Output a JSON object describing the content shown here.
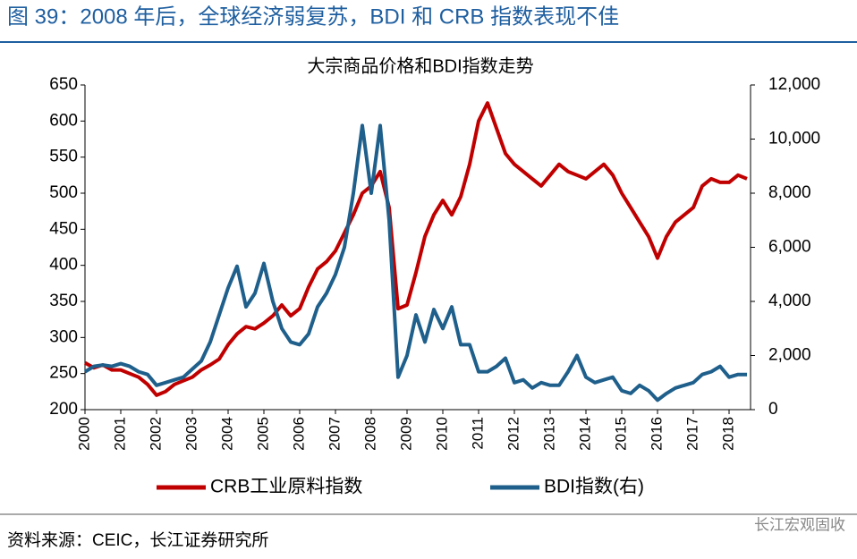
{
  "chart_data": {
    "type": "line",
    "header": "图 39：2008 年后，全球经济弱复苏，BDI 和 CRB 指数表现不佳",
    "title": "大宗商品价格和BDI指数走势",
    "source": "资料来源：CEIC，长江证券研究所",
    "watermark": "长江宏观固收",
    "x": [
      2000,
      2000.25,
      2000.5,
      2000.75,
      2001,
      2001.25,
      2001.5,
      2001.75,
      2002,
      2002.25,
      2002.5,
      2002.75,
      2003,
      2003.25,
      2003.5,
      2003.75,
      2004,
      2004.25,
      2004.5,
      2004.75,
      2005,
      2005.25,
      2005.5,
      2005.75,
      2006,
      2006.25,
      2006.5,
      2006.75,
      2007,
      2007.25,
      2007.5,
      2007.75,
      2008,
      2008.25,
      2008.5,
      2008.75,
      2009,
      2009.25,
      2009.5,
      2009.75,
      2010,
      2010.25,
      2010.5,
      2010.75,
      2011,
      2011.25,
      2011.5,
      2011.75,
      2012,
      2012.25,
      2012.5,
      2012.75,
      2013,
      2013.25,
      2013.5,
      2013.75,
      2014,
      2014.25,
      2014.5,
      2014.75,
      2015,
      2015.25,
      2015.5,
      2015.75,
      2016,
      2016.25,
      2016.5,
      2016.75,
      2017,
      2017.25,
      2017.5,
      2017.75,
      2018,
      2018.25,
      2018.5
    ],
    "series": [
      {
        "name": "CRB工业原料指数",
        "color": "#c00000",
        "axis": "y",
        "values": [
          265,
          258,
          262,
          255,
          255,
          250,
          245,
          235,
          220,
          225,
          235,
          240,
          245,
          255,
          262,
          270,
          290,
          305,
          315,
          312,
          320,
          330,
          345,
          330,
          340,
          370,
          395,
          405,
          420,
          445,
          470,
          500,
          510,
          530,
          480,
          340,
          345,
          390,
          440,
          470,
          490,
          470,
          495,
          540,
          600,
          625,
          590,
          555,
          540,
          530,
          520,
          510,
          525,
          540,
          530,
          525,
          520,
          530,
          540,
          525,
          500,
          480,
          460,
          440,
          410,
          440,
          460,
          470,
          480,
          510,
          520,
          515,
          515,
          525,
          520
        ]
      },
      {
        "name": "BDI指数(右)",
        "color": "#1f5f8b",
        "axis": "y2",
        "values": [
          1400,
          1600,
          1650,
          1600,
          1700,
          1600,
          1400,
          1300,
          900,
          1000,
          1100,
          1200,
          1500,
          1800,
          2500,
          3500,
          4500,
          5300,
          3800,
          4300,
          5400,
          4000,
          3000,
          2500,
          2400,
          2800,
          3800,
          4300,
          5000,
          6000,
          8000,
          10500,
          8000,
          10500,
          7000,
          1200,
          2000,
          3500,
          2500,
          3700,
          3000,
          3800,
          2400,
          2400,
          1400,
          1400,
          1600,
          1900,
          1000,
          1100,
          800,
          1000,
          900,
          900,
          1400,
          2000,
          1200,
          1000,
          1100,
          1200,
          700,
          600,
          900,
          700,
          350,
          600,
          800,
          900,
          1000,
          1300,
          1400,
          1600,
          1200,
          1300,
          1300
        ]
      }
    ],
    "xlim": [
      2000,
      2018.6
    ],
    "xticks": [
      2000,
      2001,
      2002,
      2003,
      2004,
      2005,
      2006,
      2007,
      2008,
      2009,
      2010,
      2011,
      2012,
      2013,
      2014,
      2015,
      2016,
      2017,
      2018
    ],
    "ylim": [
      200,
      650
    ],
    "yticks": [
      200,
      250,
      300,
      350,
      400,
      450,
      500,
      550,
      600,
      650
    ],
    "y2lim": [
      0,
      12000
    ],
    "y2ticks": [
      0,
      {
        "value": 2000,
        "label": "2,000"
      },
      {
        "value": 4000,
        "label": "4,000"
      },
      {
        "value": 6000,
        "label": "6,000"
      },
      {
        "value": 8000,
        "label": "8,000"
      },
      {
        "value": 10000,
        "label": "10,000"
      },
      {
        "value": 12000,
        "label": "12,000"
      }
    ]
  }
}
